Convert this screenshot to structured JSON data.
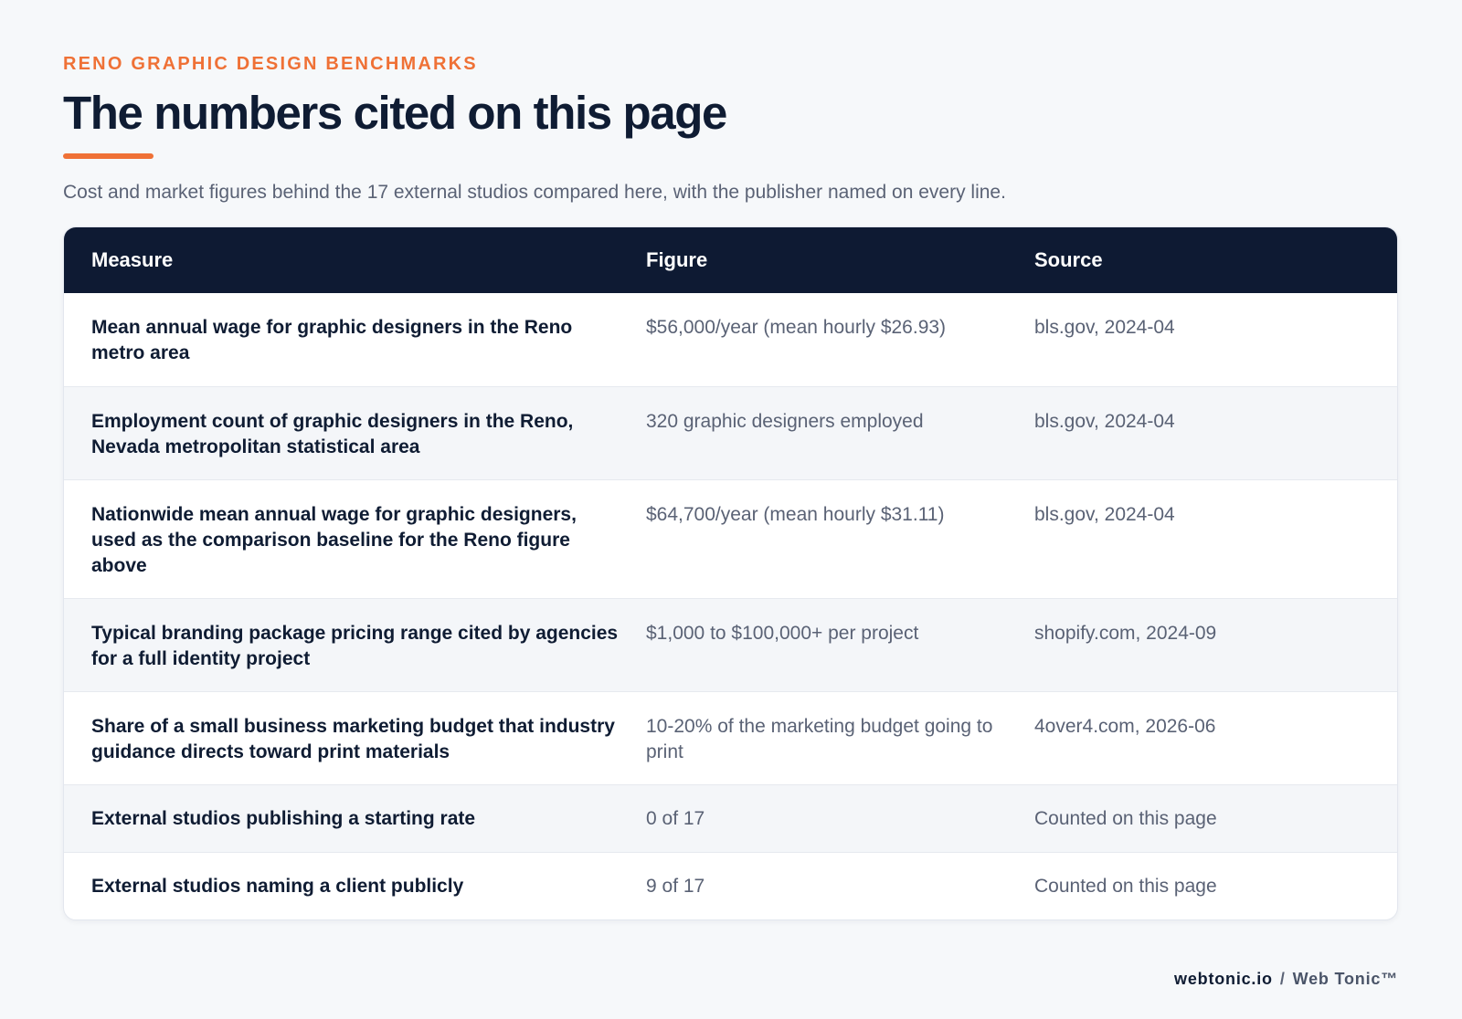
{
  "header": {
    "eyebrow": "RENO GRAPHIC DESIGN BENCHMARKS",
    "title": "The numbers cited on this page",
    "subtitle": "Cost and market figures behind the 17 external studios compared here, with the publisher named on every line."
  },
  "table": {
    "columns": [
      "Measure",
      "Figure",
      "Source"
    ],
    "rows": [
      {
        "measure": "Mean annual wage for graphic designers in the Reno metro area",
        "figure": "$56,000/year (mean hourly $26.93)",
        "source": "bls.gov, 2024-04"
      },
      {
        "measure": "Employment count of graphic designers in the Reno, Nevada metropolitan statistical area",
        "figure": "320 graphic designers employed",
        "source": "bls.gov, 2024-04"
      },
      {
        "measure": "Nationwide mean annual wage for graphic designers, used as the comparison baseline for the Reno figure above",
        "figure": "$64,700/year (mean hourly $31.11)",
        "source": "bls.gov, 2024-04"
      },
      {
        "measure": "Typical branding package pricing range cited by agencies for a full identity project",
        "figure": "$1,000 to $100,000+ per project",
        "source": "shopify.com, 2024-09"
      },
      {
        "measure": "Share of a small business marketing budget that industry guidance directs toward print materials",
        "figure": "10-20% of the marketing budget going to print",
        "source": "4over4.com, 2026-06"
      },
      {
        "measure": "External studios publishing a starting rate",
        "figure": "0 of 17",
        "source": "Counted on this page"
      },
      {
        "measure": "External studios naming a client publicly",
        "figure": "9 of 17",
        "source": "Counted on this page"
      }
    ]
  },
  "footer": {
    "domain": "webtonic.io",
    "separator": "/",
    "brand": "Web Tonic™"
  },
  "colors": {
    "accent": "#ef7136",
    "header_bg": "#0e1a33",
    "text_dark": "#0f1c33",
    "text_muted": "#5a6275",
    "page_bg": "#f6f8fa"
  }
}
